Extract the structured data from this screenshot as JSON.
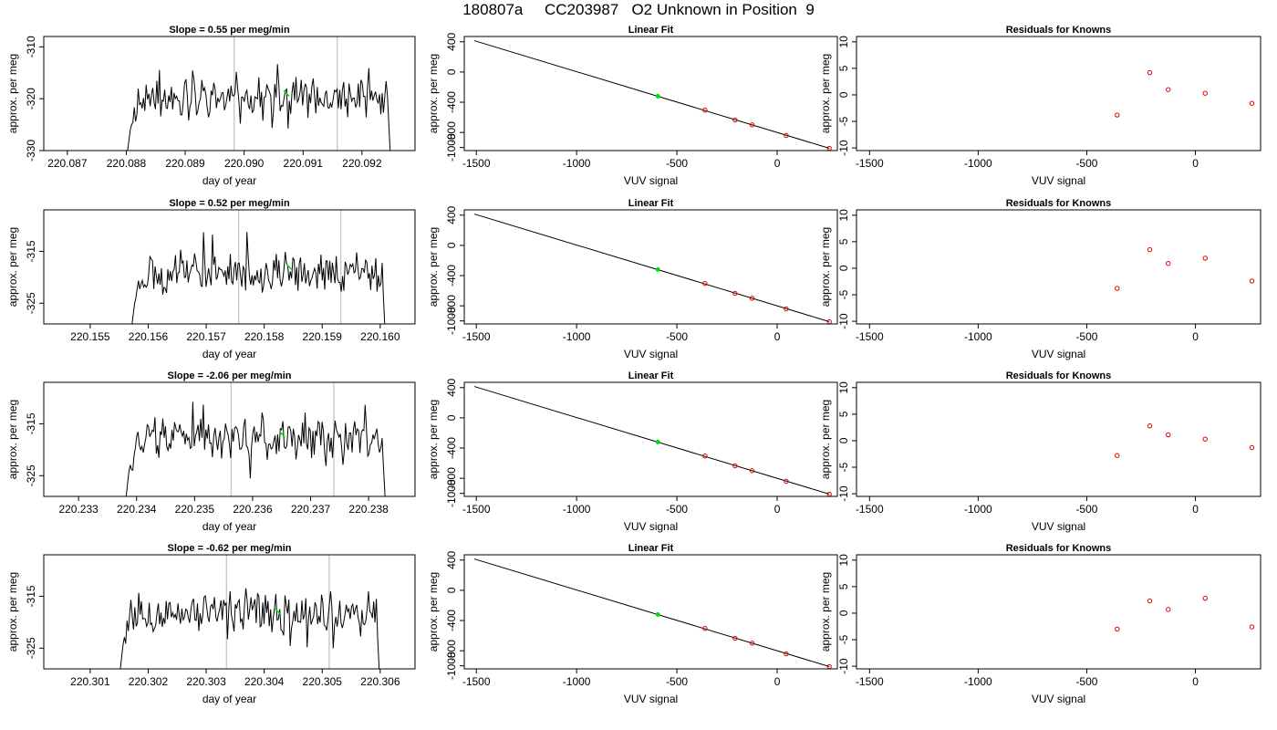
{
  "title": "180807a     CC203987   O2 Unknown in Position  9",
  "colors": {
    "trace": "#000000",
    "marker_green": "#00dd00",
    "known_points": "#dd0000",
    "event_lines": "#c8c8c8"
  },
  "chart_data": [
    {
      "type": "line",
      "title": "Slope =  0.55  per meg/min",
      "xlabel": "day of year",
      "ylabel": "approx. per meg",
      "xlim": [
        220.0866,
        220.0929
      ],
      "ylim": [
        -330,
        -308
      ],
      "x_ticks": [
        "220.087",
        "220.088",
        "220.089",
        "220.090",
        "220.091",
        "220.092"
      ],
      "y_ticks": [
        "-330",
        "-320",
        "-310"
      ],
      "trace": {
        "start": 220.088,
        "end": 220.0925,
        "mean": -320,
        "amplitude": 3.2,
        "seed": 11
      },
      "event_lines": [
        220.08983,
        220.09158
      ],
      "green_marker": {
        "x": 220.09072,
        "y": -319
      }
    },
    {
      "type": "line",
      "title": "Linear Fit",
      "xlabel": "VUV signal",
      "ylabel": "approx. per meg",
      "xlim": [
        -1560,
        300
      ],
      "ylim": [
        -1040,
        470
      ],
      "x_ticks": [
        "-1500",
        "-1000",
        "-500",
        "0"
      ],
      "y_ticks": [
        "-1000",
        "-800",
        "-400",
        "0",
        "400"
      ],
      "fit_line": {
        "x": [
          -1510,
          260
        ],
        "y": [
          415,
          -1010
        ]
      },
      "known_points": {
        "x": [
          -360,
          -210,
          -125,
          45,
          260
        ],
        "y": [
          -505,
          -635,
          -700,
          -840,
          -1010
        ]
      },
      "unknown_point": {
        "x": [
          -595
        ],
        "y": [
          -320
        ]
      }
    },
    {
      "type": "scatter",
      "title": "Residuals for Knowns",
      "xlabel": "VUV signal",
      "ylabel": "approx. per meg",
      "xlim": [
        -1560,
        300
      ],
      "ylim": [
        -10.5,
        11
      ],
      "x_ticks": [
        "-1500",
        "-1000",
        "-500",
        "0"
      ],
      "y_ticks": [
        "-10",
        "-5",
        "0",
        "5",
        "10"
      ],
      "points": {
        "x": [
          -360,
          -210,
          -125,
          45,
          260
        ],
        "y": [
          -3.8,
          4.2,
          1.0,
          0.3,
          -1.6
        ]
      }
    },
    {
      "type": "line",
      "title": "Slope =  0.52  per meg/min",
      "xlabel": "day of year",
      "ylabel": "approx. per meg",
      "xlim": [
        220.1542,
        220.1606
      ],
      "ylim": [
        -329,
        -307
      ],
      "x_ticks": [
        "220.155",
        "220.156",
        "220.157",
        "220.158",
        "220.159",
        "220.160"
      ],
      "y_ticks": [
        "-325",
        "-315"
      ],
      "trace": {
        "start": 220.1557,
        "end": 220.1601,
        "mean": -319,
        "amplitude": 3.2,
        "seed": 23
      },
      "event_lines": [
        220.15756,
        220.15932
      ],
      "green_marker": {
        "x": 220.15843,
        "y": -318
      }
    },
    {
      "type": "line",
      "title": "Linear Fit",
      "xlabel": "VUV signal",
      "ylabel": "approx. per meg",
      "xlim": [
        -1560,
        300
      ],
      "ylim": [
        -1040,
        470
      ],
      "x_ticks": [
        "-1500",
        "-1000",
        "-500",
        "0"
      ],
      "y_ticks": [
        "-1000",
        "-800",
        "-400",
        "0",
        "400"
      ],
      "fit_line": {
        "x": [
          -1510,
          260
        ],
        "y": [
          415,
          -1010
        ]
      },
      "known_points": {
        "x": [
          -360,
          -210,
          -125,
          45,
          260
        ],
        "y": [
          -505,
          -635,
          -700,
          -840,
          -1010
        ]
      },
      "unknown_point": {
        "x": [
          -595
        ],
        "y": [
          -320
        ]
      }
    },
    {
      "type": "scatter",
      "title": "Residuals for Knowns",
      "xlabel": "VUV signal",
      "ylabel": "approx. per meg",
      "xlim": [
        -1560,
        300
      ],
      "ylim": [
        -10.5,
        11
      ],
      "x_ticks": [
        "-1500",
        "-1000",
        "-500",
        "0"
      ],
      "y_ticks": [
        "-10",
        "-5",
        "0",
        "5",
        "10"
      ],
      "points": {
        "x": [
          -360,
          -210,
          -125,
          45,
          260
        ],
        "y": [
          -3.8,
          3.5,
          0.9,
          1.9,
          -2.4
        ]
      }
    },
    {
      "type": "line",
      "title": "Slope =  -2.06  per meg/min",
      "xlabel": "day of year",
      "ylabel": "approx. per meg",
      "xlim": [
        220.2324,
        220.2388
      ],
      "ylim": [
        -329,
        -307
      ],
      "x_ticks": [
        "220.233",
        "220.234",
        "220.235",
        "220.236",
        "220.237",
        "220.238"
      ],
      "y_ticks": [
        "-325",
        "-315"
      ],
      "trace": {
        "start": 220.2338,
        "end": 220.2383,
        "mean": -318,
        "amplitude": 3.2,
        "seed": 37
      },
      "event_lines": [
        220.23563,
        220.2374
      ],
      "green_marker": {
        "x": 220.23651,
        "y": -317
      }
    },
    {
      "type": "line",
      "title": "Linear Fit",
      "xlabel": "VUV signal",
      "ylabel": "approx. per meg",
      "xlim": [
        -1560,
        300
      ],
      "ylim": [
        -1040,
        470
      ],
      "x_ticks": [
        "-1500",
        "-1000",
        "-500",
        "0"
      ],
      "y_ticks": [
        "-1000",
        "-800",
        "-400",
        "0",
        "400"
      ],
      "fit_line": {
        "x": [
          -1510,
          260
        ],
        "y": [
          415,
          -1010
        ]
      },
      "known_points": {
        "x": [
          -360,
          -210,
          -125,
          45,
          260
        ],
        "y": [
          -505,
          -635,
          -700,
          -840,
          -1010
        ]
      },
      "unknown_point": {
        "x": [
          -595
        ],
        "y": [
          -320
        ]
      }
    },
    {
      "type": "scatter",
      "title": "Residuals for Knowns",
      "xlabel": "VUV signal",
      "ylabel": "approx. per meg",
      "xlim": [
        -1560,
        300
      ],
      "ylim": [
        -10.5,
        11
      ],
      "x_ticks": [
        "-1500",
        "-1000",
        "-500",
        "0"
      ],
      "y_ticks": [
        "-10",
        "-5",
        "0",
        "5",
        "10"
      ],
      "points": {
        "x": [
          -360,
          -210,
          -125,
          45,
          260
        ],
        "y": [
          -2.8,
          2.8,
          1.1,
          0.3,
          -1.3
        ]
      }
    },
    {
      "type": "line",
      "title": "Slope =  -0.62  per meg/min",
      "xlabel": "day of year",
      "ylabel": "approx. per meg",
      "xlim": [
        220.3002,
        220.3066
      ],
      "ylim": [
        -329,
        -307
      ],
      "x_ticks": [
        "220.301",
        "220.302",
        "220.303",
        "220.304",
        "220.305",
        "220.306"
      ],
      "y_ticks": [
        "-325",
        "-315"
      ],
      "trace": {
        "start": 220.3015,
        "end": 220.306,
        "mean": -318,
        "amplitude": 3.2,
        "seed": 53
      },
      "event_lines": [
        220.30335,
        220.30512
      ],
      "green_marker": {
        "x": 220.30424,
        "y": -318
      }
    },
    {
      "type": "line",
      "title": "Linear Fit",
      "xlabel": "VUV signal",
      "ylabel": "approx. per meg",
      "xlim": [
        -1560,
        300
      ],
      "ylim": [
        -1040,
        470
      ],
      "x_ticks": [
        "-1500",
        "-1000",
        "-500",
        "0"
      ],
      "y_ticks": [
        "-1000",
        "-800",
        "-400",
        "0",
        "400"
      ],
      "fit_line": {
        "x": [
          -1510,
          260
        ],
        "y": [
          415,
          -1010
        ]
      },
      "known_points": {
        "x": [
          -360,
          -210,
          -125,
          45,
          260
        ],
        "y": [
          -505,
          -635,
          -700,
          -840,
          -1010
        ]
      },
      "unknown_point": {
        "x": [
          -595
        ],
        "y": [
          -320
        ]
      }
    },
    {
      "type": "scatter",
      "title": "Residuals for Knowns",
      "xlabel": "VUV signal",
      "ylabel": "approx. per meg",
      "xlim": [
        -1560,
        300
      ],
      "ylim": [
        -10.5,
        11
      ],
      "x_ticks": [
        "-1500",
        "-1000",
        "-500",
        "0"
      ],
      "y_ticks": [
        "-10",
        "-5",
        "0",
        "5",
        "10"
      ],
      "points": {
        "x": [
          -360,
          -210,
          -125,
          45,
          260
        ],
        "y": [
          -3.0,
          2.3,
          0.7,
          2.8,
          -2.6
        ]
      }
    }
  ]
}
